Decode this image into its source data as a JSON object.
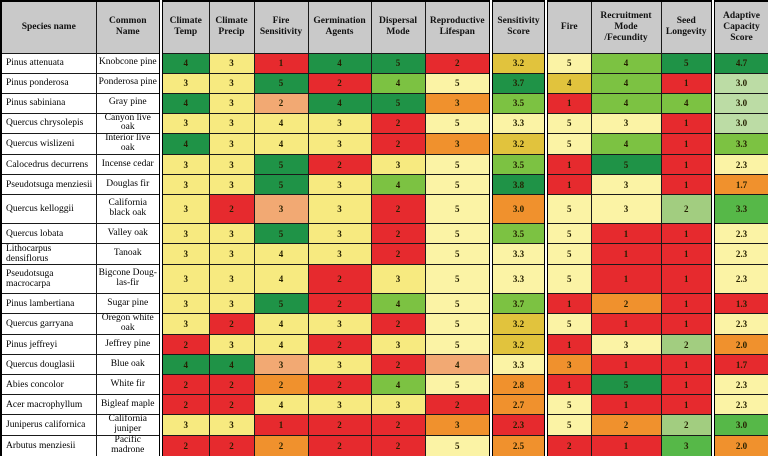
{
  "palette": {
    "dg": "#1F9347",
    "lg": "#7CC242",
    "mg": "#56B848",
    "pg": "#BCDCA5",
    "sg": "#A2CD80",
    "y": "#F7EA80",
    "py": "#FBF3A5",
    "gd": "#E1C33D",
    "or": "#F0912D",
    "sa": "#F2A973",
    "rd": "#E62A2E",
    "header_bg": "#C9C9C9",
    "border": "#000000"
  },
  "table": {
    "columns": [
      {
        "id": "species-name",
        "label": "Species name",
        "width": 95,
        "groupStart": false
      },
      {
        "id": "common-name",
        "label": "Common Name",
        "width": 65,
        "groupStart": false
      },
      {
        "id": "climate-temp",
        "label": "Climate Temp",
        "width": 48,
        "groupStart": true
      },
      {
        "id": "climate-precip",
        "label": "Climate Precip",
        "width": 45,
        "groupStart": false
      },
      {
        "id": "fire-sensitivity",
        "label": "Fire Sensitivity",
        "width": 54,
        "groupStart": false
      },
      {
        "id": "germination-agents",
        "label": "Germination Agents",
        "width": 63,
        "groupStart": false
      },
      {
        "id": "dispersal-mode",
        "label": "Dispersal Mode",
        "width": 54,
        "groupStart": false
      },
      {
        "id": "reproductive-lifespan",
        "label": "Reproductive Lifespan",
        "width": 66,
        "groupStart": false
      },
      {
        "id": "sensitivity-score",
        "label": "Sensitivity Score",
        "width": 55,
        "groupStart": true
      },
      {
        "id": "fire",
        "label": "Fire",
        "width": 45,
        "groupStart": true
      },
      {
        "id": "recruitment-mode-fecundity",
        "label": "Recruitment Mode /Fecundity",
        "width": 70,
        "groupStart": false
      },
      {
        "id": "seed-longevity",
        "label": "Seed Longevity",
        "width": 52,
        "groupStart": false
      },
      {
        "id": "adaptive-capacity-score",
        "label": "Adaptive Capacity Score",
        "width": 56,
        "groupStart": true
      }
    ],
    "rows": [
      {
        "species": "Pinus attenuata",
        "common": "Knobcone pine",
        "tall": false,
        "cells": [
          {
            "v": "4",
            "c": "dg"
          },
          {
            "v": "3",
            "c": "y"
          },
          {
            "v": "1",
            "c": "rd"
          },
          {
            "v": "4",
            "c": "dg"
          },
          {
            "v": "5",
            "c": "dg"
          },
          {
            "v": "2",
            "c": "rd"
          },
          {
            "v": "3.2",
            "c": "gd"
          },
          {
            "v": "5",
            "c": "py"
          },
          {
            "v": "4",
            "c": "lg"
          },
          {
            "v": "5",
            "c": "dg"
          },
          {
            "v": "4.7",
            "c": "dg"
          }
        ]
      },
      {
        "species": "Pinus ponderosa",
        "common": "Ponderosa pine",
        "tall": false,
        "cells": [
          {
            "v": "3",
            "c": "y"
          },
          {
            "v": "3",
            "c": "y"
          },
          {
            "v": "5",
            "c": "dg"
          },
          {
            "v": "2",
            "c": "rd"
          },
          {
            "v": "4",
            "c": "lg"
          },
          {
            "v": "5",
            "c": "py"
          },
          {
            "v": "3.7",
            "c": "dg"
          },
          {
            "v": "4",
            "c": "gd"
          },
          {
            "v": "4",
            "c": "lg"
          },
          {
            "v": "1",
            "c": "rd"
          },
          {
            "v": "3.0",
            "c": "pg"
          }
        ]
      },
      {
        "species": "Pinus sabiniana",
        "common": "Gray pine",
        "tall": false,
        "cells": [
          {
            "v": "4",
            "c": "dg"
          },
          {
            "v": "3",
            "c": "y"
          },
          {
            "v": "2",
            "c": "sa"
          },
          {
            "v": "4",
            "c": "dg"
          },
          {
            "v": "5",
            "c": "dg"
          },
          {
            "v": "3",
            "c": "or"
          },
          {
            "v": "3.5",
            "c": "lg"
          },
          {
            "v": "1",
            "c": "rd"
          },
          {
            "v": "4",
            "c": "lg"
          },
          {
            "v": "4",
            "c": "lg"
          },
          {
            "v": "3.0",
            "c": "pg"
          }
        ]
      },
      {
        "species": "Quercus chrysolepis",
        "common": "Canyon live oak",
        "tall": false,
        "cells": [
          {
            "v": "3",
            "c": "y"
          },
          {
            "v": "3",
            "c": "y"
          },
          {
            "v": "4",
            "c": "y"
          },
          {
            "v": "3",
            "c": "y"
          },
          {
            "v": "2",
            "c": "rd"
          },
          {
            "v": "5",
            "c": "py"
          },
          {
            "v": "3.3",
            "c": "py"
          },
          {
            "v": "5",
            "c": "py"
          },
          {
            "v": "3",
            "c": "py"
          },
          {
            "v": "1",
            "c": "rd"
          },
          {
            "v": "3.0",
            "c": "pg"
          }
        ]
      },
      {
        "species": "Quercus wislizeni",
        "common": "Interior live oak",
        "tall": false,
        "cells": [
          {
            "v": "4",
            "c": "dg"
          },
          {
            "v": "3",
            "c": "y"
          },
          {
            "v": "4",
            "c": "y"
          },
          {
            "v": "3",
            "c": "y"
          },
          {
            "v": "2",
            "c": "rd"
          },
          {
            "v": "3",
            "c": "or"
          },
          {
            "v": "3.2",
            "c": "gd"
          },
          {
            "v": "5",
            "c": "py"
          },
          {
            "v": "4",
            "c": "lg"
          },
          {
            "v": "1",
            "c": "rd"
          },
          {
            "v": "3.3",
            "c": "lg"
          }
        ]
      },
      {
        "species": "Calocedrus decurrens",
        "common": "Incense cedar",
        "tall": false,
        "cells": [
          {
            "v": "3",
            "c": "y"
          },
          {
            "v": "3",
            "c": "y"
          },
          {
            "v": "5",
            "c": "dg"
          },
          {
            "v": "2",
            "c": "rd"
          },
          {
            "v": "3",
            "c": "y"
          },
          {
            "v": "5",
            "c": "py"
          },
          {
            "v": "3.5",
            "c": "lg"
          },
          {
            "v": "1",
            "c": "rd"
          },
          {
            "v": "5",
            "c": "dg"
          },
          {
            "v": "1",
            "c": "rd"
          },
          {
            "v": "2.3",
            "c": "py"
          }
        ]
      },
      {
        "species": "Pseudotsuga menziesii",
        "common": "Douglas fir",
        "tall": false,
        "cells": [
          {
            "v": "3",
            "c": "y"
          },
          {
            "v": "3",
            "c": "y"
          },
          {
            "v": "5",
            "c": "dg"
          },
          {
            "v": "3",
            "c": "y"
          },
          {
            "v": "4",
            "c": "lg"
          },
          {
            "v": "5",
            "c": "py"
          },
          {
            "v": "3.8",
            "c": "dg"
          },
          {
            "v": "1",
            "c": "rd"
          },
          {
            "v": "3",
            "c": "py"
          },
          {
            "v": "1",
            "c": "rd"
          },
          {
            "v": "1.7",
            "c": "or"
          }
        ]
      },
      {
        "species": "Quercus kelloggii",
        "common": "California black oak",
        "tall": true,
        "cells": [
          {
            "v": "3",
            "c": "y"
          },
          {
            "v": "2",
            "c": "rd"
          },
          {
            "v": "3",
            "c": "sa"
          },
          {
            "v": "3",
            "c": "y"
          },
          {
            "v": "2",
            "c": "rd"
          },
          {
            "v": "5",
            "c": "py"
          },
          {
            "v": "3.0",
            "c": "or"
          },
          {
            "v": "5",
            "c": "py"
          },
          {
            "v": "3",
            "c": "py"
          },
          {
            "v": "2",
            "c": "sg"
          },
          {
            "v": "3.3",
            "c": "mg"
          }
        ]
      },
      {
        "species": "Quercus lobata",
        "common": "Valley oak",
        "tall": false,
        "cells": [
          {
            "v": "3",
            "c": "y"
          },
          {
            "v": "3",
            "c": "y"
          },
          {
            "v": "5",
            "c": "dg"
          },
          {
            "v": "3",
            "c": "y"
          },
          {
            "v": "2",
            "c": "rd"
          },
          {
            "v": "5",
            "c": "py"
          },
          {
            "v": "3.5",
            "c": "lg"
          },
          {
            "v": "5",
            "c": "py"
          },
          {
            "v": "1",
            "c": "rd"
          },
          {
            "v": "1",
            "c": "rd"
          },
          {
            "v": "2.3",
            "c": "py"
          }
        ]
      },
      {
        "species": "Lithocarpus densiflorus",
        "common": "Tanoak",
        "tall": false,
        "cells": [
          {
            "v": "3",
            "c": "y"
          },
          {
            "v": "3",
            "c": "y"
          },
          {
            "v": "4",
            "c": "y"
          },
          {
            "v": "3",
            "c": "y"
          },
          {
            "v": "2",
            "c": "rd"
          },
          {
            "v": "5",
            "c": "py"
          },
          {
            "v": "3.3",
            "c": "py"
          },
          {
            "v": "5",
            "c": "py"
          },
          {
            "v": "1",
            "c": "rd"
          },
          {
            "v": "1",
            "c": "rd"
          },
          {
            "v": "2.3",
            "c": "py"
          }
        ]
      },
      {
        "species": "Pseudotsuga macrocarpa",
        "common": "Bigcone Doug-las-fir",
        "tall": true,
        "cells": [
          {
            "v": "3",
            "c": "y"
          },
          {
            "v": "3",
            "c": "y"
          },
          {
            "v": "4",
            "c": "y"
          },
          {
            "v": "2",
            "c": "rd"
          },
          {
            "v": "3",
            "c": "y"
          },
          {
            "v": "5",
            "c": "py"
          },
          {
            "v": "3.3",
            "c": "py"
          },
          {
            "v": "5",
            "c": "py"
          },
          {
            "v": "1",
            "c": "rd"
          },
          {
            "v": "1",
            "c": "rd"
          },
          {
            "v": "2.3",
            "c": "py"
          }
        ]
      },
      {
        "species": "Pinus lambertiana",
        "common": "Sugar pine",
        "tall": false,
        "cells": [
          {
            "v": "3",
            "c": "y"
          },
          {
            "v": "3",
            "c": "y"
          },
          {
            "v": "5",
            "c": "dg"
          },
          {
            "v": "2",
            "c": "rd"
          },
          {
            "v": "4",
            "c": "lg"
          },
          {
            "v": "5",
            "c": "py"
          },
          {
            "v": "3.7",
            "c": "lg"
          },
          {
            "v": "1",
            "c": "rd"
          },
          {
            "v": "2",
            "c": "or"
          },
          {
            "v": "1",
            "c": "rd"
          },
          {
            "v": "1.3",
            "c": "rd"
          }
        ]
      },
      {
        "species": "Quercus garryana",
        "common": "Oregon white oak",
        "tall": false,
        "cells": [
          {
            "v": "3",
            "c": "y"
          },
          {
            "v": "2",
            "c": "rd"
          },
          {
            "v": "4",
            "c": "y"
          },
          {
            "v": "3",
            "c": "y"
          },
          {
            "v": "2",
            "c": "rd"
          },
          {
            "v": "5",
            "c": "py"
          },
          {
            "v": "3.2",
            "c": "gd"
          },
          {
            "v": "5",
            "c": "py"
          },
          {
            "v": "1",
            "c": "rd"
          },
          {
            "v": "1",
            "c": "rd"
          },
          {
            "v": "2.3",
            "c": "py"
          }
        ]
      },
      {
        "species": "Pinus jeffreyi",
        "common": "Jeffrey pine",
        "tall": false,
        "cells": [
          {
            "v": "2",
            "c": "rd"
          },
          {
            "v": "3",
            "c": "y"
          },
          {
            "v": "4",
            "c": "y"
          },
          {
            "v": "2",
            "c": "rd"
          },
          {
            "v": "3",
            "c": "y"
          },
          {
            "v": "5",
            "c": "py"
          },
          {
            "v": "3.2",
            "c": "gd"
          },
          {
            "v": "1",
            "c": "rd"
          },
          {
            "v": "3",
            "c": "py"
          },
          {
            "v": "2",
            "c": "sg"
          },
          {
            "v": "2.0",
            "c": "or"
          }
        ]
      },
      {
        "species": "Quercus douglasii",
        "common": "Blue oak",
        "tall": false,
        "cells": [
          {
            "v": "4",
            "c": "dg"
          },
          {
            "v": "4",
            "c": "dg"
          },
          {
            "v": "3",
            "c": "sa"
          },
          {
            "v": "3",
            "c": "y"
          },
          {
            "v": "2",
            "c": "rd"
          },
          {
            "v": "4",
            "c": "sa"
          },
          {
            "v": "3.3",
            "c": "py"
          },
          {
            "v": "3",
            "c": "or"
          },
          {
            "v": "1",
            "c": "rd"
          },
          {
            "v": "1",
            "c": "rd"
          },
          {
            "v": "1.7",
            "c": "rd"
          }
        ]
      },
      {
        "species": "Abies concolor",
        "common": "White fir",
        "tall": false,
        "cells": [
          {
            "v": "2",
            "c": "rd"
          },
          {
            "v": "2",
            "c": "rd"
          },
          {
            "v": "2",
            "c": "or"
          },
          {
            "v": "2",
            "c": "rd"
          },
          {
            "v": "4",
            "c": "lg"
          },
          {
            "v": "5",
            "c": "py"
          },
          {
            "v": "2.8",
            "c": "or"
          },
          {
            "v": "1",
            "c": "rd"
          },
          {
            "v": "5",
            "c": "dg"
          },
          {
            "v": "1",
            "c": "rd"
          },
          {
            "v": "2.3",
            "c": "py"
          }
        ]
      },
      {
        "species": "Acer macrophyllum",
        "common": "Bigleaf maple",
        "tall": false,
        "cells": [
          {
            "v": "2",
            "c": "rd"
          },
          {
            "v": "2",
            "c": "rd"
          },
          {
            "v": "4",
            "c": "y"
          },
          {
            "v": "3",
            "c": "y"
          },
          {
            "v": "3",
            "c": "y"
          },
          {
            "v": "2",
            "c": "rd"
          },
          {
            "v": "2.7",
            "c": "or"
          },
          {
            "v": "5",
            "c": "py"
          },
          {
            "v": "1",
            "c": "rd"
          },
          {
            "v": "1",
            "c": "rd"
          },
          {
            "v": "2.3",
            "c": "py"
          }
        ]
      },
      {
        "species": "Juniperus californica",
        "common": "California juniper",
        "tall": false,
        "cells": [
          {
            "v": "3",
            "c": "y"
          },
          {
            "v": "3",
            "c": "y"
          },
          {
            "v": "1",
            "c": "rd"
          },
          {
            "v": "2",
            "c": "rd"
          },
          {
            "v": "2",
            "c": "rd"
          },
          {
            "v": "3",
            "c": "or"
          },
          {
            "v": "2.3",
            "c": "rd"
          },
          {
            "v": "5",
            "c": "py"
          },
          {
            "v": "2",
            "c": "or"
          },
          {
            "v": "2",
            "c": "sg"
          },
          {
            "v": "3.0",
            "c": "mg"
          }
        ]
      },
      {
        "species": "Arbutus menziesii",
        "common": "Pacific madrone",
        "tall": false,
        "cells": [
          {
            "v": "2",
            "c": "rd"
          },
          {
            "v": "2",
            "c": "rd"
          },
          {
            "v": "2",
            "c": "or"
          },
          {
            "v": "2",
            "c": "rd"
          },
          {
            "v": "2",
            "c": "rd"
          },
          {
            "v": "5",
            "c": "py"
          },
          {
            "v": "2.5",
            "c": "or"
          },
          {
            "v": "2",
            "c": "rd"
          },
          {
            "v": "1",
            "c": "rd"
          },
          {
            "v": "3",
            "c": "mg"
          },
          {
            "v": "2.0",
            "c": "or"
          }
        ]
      }
    ]
  }
}
